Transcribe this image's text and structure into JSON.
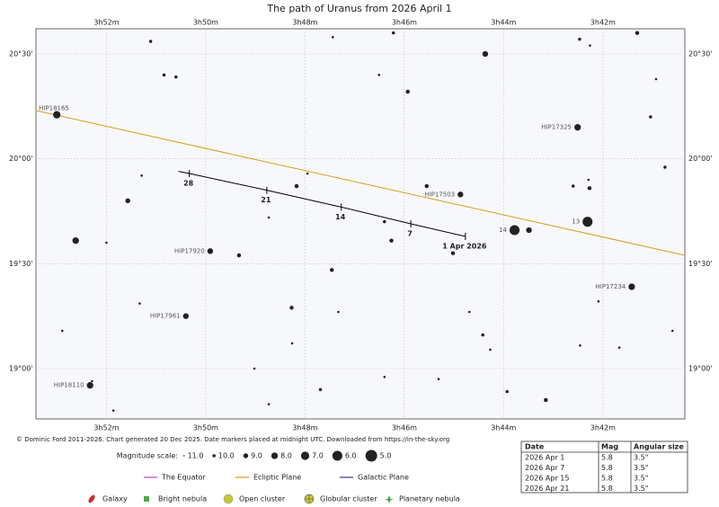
{
  "chart_data": {
    "type": "scatter",
    "title": "The path of Uranus from 2026 April 1",
    "xlim": [
      53.42,
      40.35
    ],
    "ylim": [
      18.76,
      20.62
    ],
    "xticks": [
      {
        "value": 52,
        "label": "3h52m"
      },
      {
        "value": 50,
        "label": "3h50m"
      },
      {
        "value": 48,
        "label": "3h48m"
      },
      {
        "value": 46,
        "label": "3h46m"
      },
      {
        "value": 44,
        "label": "3h44m"
      },
      {
        "value": 42,
        "label": "3h42m"
      }
    ],
    "yticks": [
      {
        "value": 20.5,
        "label": "20°30'"
      },
      {
        "value": 20,
        "label": "20°00'"
      },
      {
        "value": 19.5,
        "label": "19°30'"
      },
      {
        "value": 19,
        "label": "19°00'"
      }
    ],
    "grid": true,
    "stars": {
      "color": "#222222",
      "x": [
        53.0,
        51.11,
        50.84,
        50.6,
        47.44,
        46.22,
        44.37,
        42.47,
        42.26,
        41.31,
        46.51,
        45.93,
        40.93,
        41.04,
        42.51,
        40.75,
        51.29,
        47.95,
        48.17,
        45.55,
        44.87,
        42.29,
        42.6,
        42.27,
        51.57,
        48.73,
        46.4,
        46.26,
        42.31,
        43.78,
        43.49,
        52.62,
        52.0,
        49.91,
        49.33,
        45.02,
        47.46,
        41.42,
        51.33,
        42.09,
        48.27,
        47.33,
        44.69,
        50.4,
        52.89,
        44.42,
        40.6,
        48.26,
        44.27,
        42.46,
        41.67,
        49.02,
        46.4,
        45.31,
        52.33,
        52.29,
        47.69,
        43.93,
        43.15,
        48.73,
        51.86
      ],
      "values": [
        20.21,
        20.56,
        20.4,
        20.39,
        20.58,
        20.6,
        20.5,
        20.57,
        20.54,
        20.6,
        20.4,
        20.32,
        20.38,
        20.2,
        20.15,
        19.96,
        19.92,
        19.93,
        19.87,
        19.87,
        19.83,
        19.9,
        19.87,
        19.86,
        19.8,
        19.72,
        19.7,
        19.61,
        19.7,
        19.66,
        19.66,
        19.61,
        19.6,
        19.56,
        19.54,
        19.55,
        19.47,
        19.39,
        19.31,
        19.32,
        19.29,
        19.27,
        19.27,
        19.25,
        19.18,
        19.16,
        19.18,
        19.12,
        19.09,
        19.11,
        19.1,
        19.0,
        18.96,
        18.95,
        18.92,
        18.94,
        18.9,
        18.89,
        18.85,
        18.83,
        18.8
      ],
      "sizes": [
        7.5,
        10,
        10,
        10,
        10.5,
        10,
        8.5,
        10,
        10.5,
        9.5,
        10.5,
        9.5,
        10.5,
        10,
        8,
        10,
        10.5,
        10.5,
        9.5,
        9.5,
        8.5,
        10.5,
        10,
        9.5,
        9,
        10.5,
        10,
        9.5,
        6,
        6,
        8.5,
        8,
        10.5,
        8.5,
        9.5,
        9.5,
        9.5,
        8,
        10.5,
        10.5,
        9.5,
        10.5,
        10.5,
        8.5,
        10.5,
        10,
        10.5,
        10.5,
        10.5,
        10.5,
        10.5,
        10.5,
        10.5,
        10.5,
        8,
        10.5,
        10,
        10,
        9.5,
        10.5,
        10.5
      ],
      "labels": [
        "HIP18165",
        null,
        null,
        null,
        null,
        null,
        null,
        null,
        null,
        null,
        null,
        null,
        null,
        null,
        "HIP17325",
        null,
        null,
        null,
        null,
        null,
        "HIP17503",
        null,
        null,
        null,
        null,
        null,
        null,
        null,
        "13",
        "14",
        null,
        null,
        null,
        "HIP17920",
        null,
        null,
        null,
        "HIP17234",
        null,
        null,
        null,
        null,
        null,
        "HIP17961",
        null,
        null,
        null,
        null,
        null,
        null,
        null,
        null,
        null,
        null,
        "HIP18110",
        null,
        null,
        null,
        null,
        null,
        null
      ]
    },
    "ecliptic": {
      "name": "Ecliptic Plane",
      "color": "#d4a017",
      "x": [
        53.42,
        40.35
      ],
      "values": [
        20.23,
        19.54
      ]
    },
    "path": {
      "color": "#000000",
      "x": [
        50.55,
        50.33,
        48.77,
        47.27,
        45.87,
        44.77
      ],
      "values": [
        19.94,
        19.93,
        19.85,
        19.77,
        19.69,
        19.63
      ],
      "labels": [
        null,
        "28",
        "21",
        "14",
        "7",
        "1 Apr 2026"
      ]
    }
  },
  "credit": "© Dominic Ford 2011-2026. Chart generated 20 Dec 2025. Date markers placed at midnight UTC. Downloaded from https://in-the-sky.org",
  "magnitude_scale": {
    "title": "Magnitude scale:",
    "values": [
      {
        "value": 11,
        "label": "11.0"
      },
      {
        "value": 10,
        "label": "10.0"
      },
      {
        "value": 9,
        "label": "9.0"
      },
      {
        "value": 8,
        "label": "8.0"
      },
      {
        "value": 7,
        "label": "7.0"
      },
      {
        "value": 6,
        "label": "6.0"
      },
      {
        "value": 5,
        "label": "5.0"
      }
    ]
  },
  "legend_lines": [
    {
      "name": "The Equator",
      "color": "#c040c0"
    },
    {
      "name": "Ecliptic Plane",
      "color": "#d4a017"
    },
    {
      "name": "Galactic Plane",
      "color": "#3030a0"
    }
  ],
  "legend_objects": [
    "Galaxy",
    "Bright nebula",
    "Open cluster",
    "Globular cluster",
    "Planetary nebula"
  ],
  "table": {
    "header": [
      "Date",
      "Mag",
      "Angular size"
    ],
    "rows": [
      [
        "2026 Apr 1",
        "5.8",
        "3.5\""
      ],
      [
        "2026 Apr 7",
        "5.8",
        "3.5\""
      ],
      [
        "2026 Apr 15",
        "5.8",
        "3.5\""
      ],
      [
        "2026 Apr 21",
        "5.8",
        "3.5\""
      ]
    ]
  }
}
